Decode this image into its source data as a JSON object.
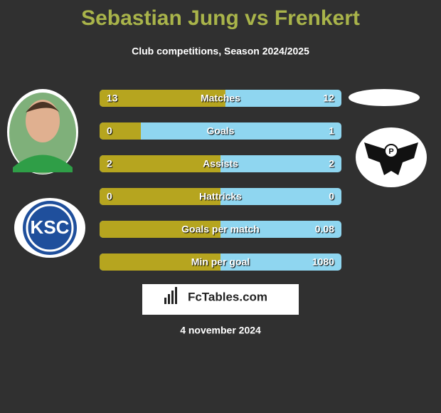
{
  "header": {
    "title": "Sebastian Jung vs Frenkert",
    "subtitle": "Club competitions, Season 2024/2025"
  },
  "rows": [
    {
      "label": "Matches",
      "left": 13,
      "right": 12
    },
    {
      "label": "Goals",
      "left": 0,
      "right": 1
    },
    {
      "label": "Assists",
      "left": 2,
      "right": 2
    },
    {
      "label": "Hattricks",
      "left": 0,
      "right": 0
    },
    {
      "label": "Goals per match",
      "left": null,
      "right": 0.08
    },
    {
      "label": "Min per goal",
      "left": null,
      "right": 1080
    }
  ],
  "logo": {
    "text": "FcTables.com"
  },
  "date": "4 november 2024"
}
